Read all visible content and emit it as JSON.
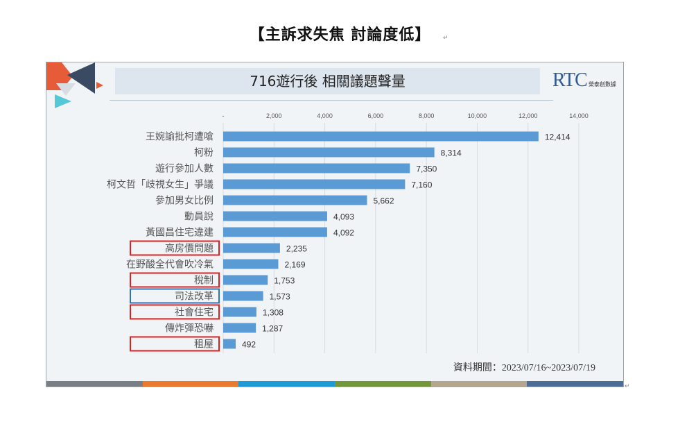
{
  "page_title": "【主訴求失焦  討論度低】",
  "return_mark": "↵",
  "slide": {
    "title": "716遊行後 相關議題聲量",
    "logo": {
      "letters": "RTC",
      "text": "榮泰創數據"
    },
    "date_range": "資料期間：2023/07/16~2023/07/19",
    "footer_colors": [
      "#7a7f86",
      "#ea7a2f",
      "#1e9bd7",
      "#74973b",
      "#b4a68e",
      "#4d6d94"
    ]
  },
  "chart_data": {
    "type": "bar",
    "orientation": "horizontal",
    "categories": [
      "王婉諭批柯遭嗆",
      "柯粉",
      "遊行參加人數",
      "柯文哲「歧視女生」爭議",
      "參加男女比例",
      "動員說",
      "黃國昌住宅違建",
      "高房價問題",
      "在野酸全代會吹冷氣",
      "稅制",
      "司法改革",
      "社會住宅",
      "傳炸彈恐嚇",
      "租屋"
    ],
    "values": [
      12414,
      8314,
      7350,
      7160,
      5662,
      4093,
      4092,
      2235,
      2169,
      1753,
      1573,
      1308,
      1287,
      492
    ],
    "value_labels": [
      "12,414",
      "8,314",
      "7,350",
      "7,160",
      "5,662",
      "4,093",
      "4,092",
      "2,235",
      "2,169",
      "1,753",
      "1,573",
      "1,308",
      "1,287",
      "492"
    ],
    "xlim": [
      0,
      14000
    ],
    "xticks": [
      0,
      2000,
      4000,
      6000,
      8000,
      10000,
      12000,
      14000
    ],
    "xtick_labels": [
      "-",
      "2,000",
      "4,000",
      "6,000",
      "8,000",
      "10,000",
      "12,000",
      "14,000"
    ],
    "bar_color": "#5b9bd5",
    "grid": true,
    "highlighted_categories": {
      "red": [
        "高房價問題",
        "稅制",
        "社會住宅",
        "租屋"
      ],
      "blue": [
        "司法改革"
      ]
    },
    "highlight_colors": {
      "red": "#e02020",
      "blue": "#2e75b6"
    }
  }
}
